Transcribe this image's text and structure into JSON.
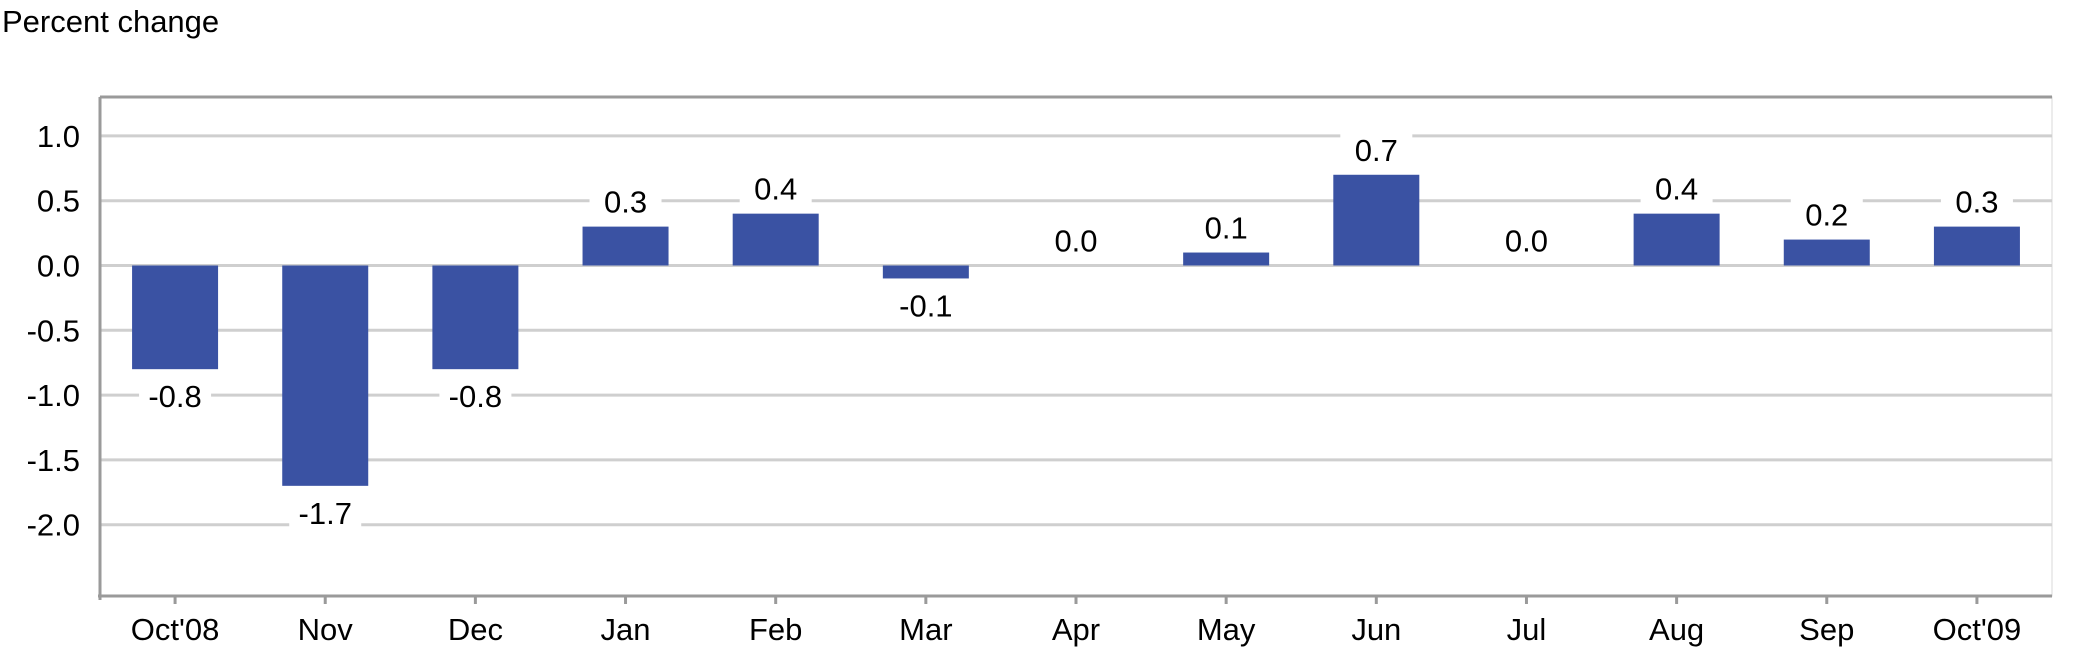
{
  "chart_data": {
    "type": "bar",
    "ylabel": "Percent change",
    "categories": [
      "Oct'08",
      "Nov",
      "Dec",
      "Jan",
      "Feb",
      "Mar",
      "Apr",
      "May",
      "Jun",
      "Jul",
      "Aug",
      "Sep",
      "Oct'09"
    ],
    "values": [
      -0.8,
      -1.7,
      -0.8,
      0.3,
      0.4,
      -0.1,
      0.0,
      0.1,
      0.7,
      0.0,
      0.4,
      0.2,
      0.3
    ],
    "data_labels": [
      "-0.8",
      "-1.7",
      "-0.8",
      "0.3",
      "0.4",
      "-0.1",
      "0.0",
      "0.1",
      "0.7",
      "0.0",
      "0.4",
      "0.2",
      "0.3"
    ],
    "yticks": [
      "1.0",
      "0.5",
      "0.0",
      "-0.5",
      "-1.0",
      "-1.5",
      "-2.0"
    ],
    "ytick_values": [
      1.0,
      0.5,
      0.0,
      -0.5,
      -1.0,
      -1.5,
      -2.0
    ],
    "ylim": [
      -2.55,
      1.3
    ],
    "grid": true,
    "bar_color": "#3a52a3",
    "grid_color": "#cfcfcf"
  }
}
